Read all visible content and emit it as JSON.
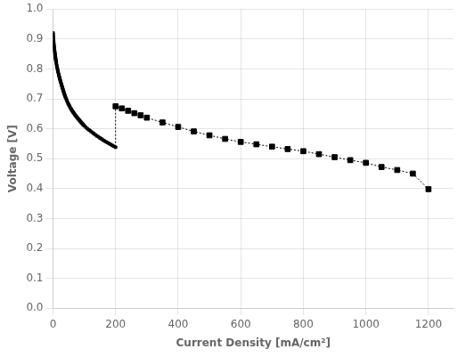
{
  "chart_data": {
    "type": "scatter",
    "xlabel": "Current Density [mA/cm²]",
    "ylabel": "Voltage [V]",
    "xlim": [
      0,
      1280
    ],
    "ylim": [
      0.0,
      1.0
    ],
    "xticks": [
      0,
      200,
      400,
      600,
      800,
      1000,
      1200
    ],
    "yticks": [
      {
        "value": 0.0,
        "label": "0.0"
      },
      0.1,
      0.2,
      0.3,
      0.4,
      0.5,
      0.6,
      0.7,
      0.8,
      0.9,
      {
        "value": 1.0,
        "label": "1.0"
      }
    ],
    "grid": true,
    "series": [
      {
        "type": "line",
        "line_style": "dotted",
        "color": "black",
        "x": [
          0.3,
          0.6,
          1.0,
          1.5,
          2.0,
          2.5,
          3.0,
          3.5,
          4.0,
          4.5,
          5.0,
          5.5,
          6.0,
          6.5,
          7.0,
          7.5,
          8.0,
          8.5,
          9.0,
          9.5,
          10.0,
          11.0,
          12.0,
          13.0,
          14.0,
          15.0,
          16.0,
          17.0,
          18.0,
          19.0,
          20.0,
          21.0,
          22.0,
          23.0,
          24.0,
          25.0,
          26.0,
          27.0,
          28.0,
          29.0,
          30.0,
          31.0,
          32.0,
          33.0,
          34.0,
          35.0,
          36.0,
          37.0,
          38.0,
          39.0,
          40.0,
          42.0,
          44.0,
          46.0,
          48.0,
          50.0,
          52.0,
          54.0,
          56.0,
          58.0,
          60.0,
          62.0,
          64.0,
          66.0,
          68.0,
          70.0,
          72.0,
          74.0,
          76.0,
          78.0,
          80.0,
          82.0,
          84.0,
          86.0,
          88.0,
          90.0,
          92.0,
          94.0,
          96.0,
          98.0,
          100.0,
          105.0,
          110.0,
          115.0,
          120.0,
          125.0,
          130.0,
          135.0,
          140.0,
          145.0,
          150.0,
          155.0,
          160.0,
          165.0,
          170.0,
          175.0,
          180.0,
          185.0,
          190.0,
          195.0,
          200.0,
          200.0,
          220.0,
          240.0,
          260.0,
          280.0,
          300.0,
          350.0,
          400.0,
          450.0,
          500.0,
          550.0,
          600.0,
          650.0,
          700.0,
          750.0,
          800.0,
          850.0,
          900.0,
          950.0,
          1000.0,
          1050.0,
          1100.0,
          1150.0,
          1200.0
        ],
        "values": [
          0.92,
          0.914,
          0.908,
          0.9,
          0.893,
          0.887,
          0.881,
          0.876,
          0.871,
          0.866,
          0.861,
          0.857,
          0.853,
          0.849,
          0.845,
          0.841,
          0.837,
          0.834,
          0.83,
          0.827,
          0.823,
          0.817,
          0.811,
          0.806,
          0.801,
          0.796,
          0.791,
          0.787,
          0.782,
          0.778,
          0.774,
          0.77,
          0.766,
          0.762,
          0.759,
          0.755,
          0.751,
          0.748,
          0.744,
          0.741,
          0.737,
          0.734,
          0.73,
          0.727,
          0.724,
          0.72,
          0.717,
          0.714,
          0.711,
          0.708,
          0.705,
          0.7,
          0.695,
          0.69,
          0.685,
          0.681,
          0.677,
          0.673,
          0.669,
          0.666,
          0.662,
          0.659,
          0.656,
          0.653,
          0.65,
          0.647,
          0.644,
          0.641,
          0.639,
          0.636,
          0.634,
          0.631,
          0.629,
          0.626,
          0.624,
          0.621,
          0.619,
          0.617,
          0.614,
          0.612,
          0.61,
          0.605,
          0.6,
          0.596,
          0.592,
          0.588,
          0.584,
          0.58,
          0.576,
          0.573,
          0.569,
          0.566,
          0.562,
          0.559,
          0.556,
          0.553,
          0.55,
          0.547,
          0.544,
          0.541,
          0.538,
          0.675,
          0.668,
          0.66,
          0.652,
          0.645,
          0.637,
          0.621,
          0.606,
          0.591,
          0.578,
          0.566,
          0.556,
          0.548,
          0.54,
          0.532,
          0.525,
          0.515,
          0.505,
          0.495,
          0.486,
          0.472,
          0.462,
          0.45,
          0.398
        ]
      },
      {
        "marker": "square",
        "color": "black",
        "x": [
          0.3,
          0.6,
          1.0,
          1.5,
          2.0,
          2.5,
          3.0,
          3.5,
          4.0,
          4.5,
          5.0,
          5.5,
          6.0,
          6.5,
          7.0,
          7.5,
          8.0,
          8.5,
          9.0,
          9.5,
          10.0,
          11.0,
          12.0,
          13.0,
          14.0,
          15.0,
          16.0,
          17.0,
          18.0,
          19.0,
          20.0,
          21.0,
          22.0,
          23.0,
          24.0,
          25.0,
          26.0,
          27.0,
          28.0,
          29.0,
          30.0,
          31.0,
          32.0,
          33.0,
          34.0,
          35.0,
          36.0,
          37.0,
          38.0,
          39.0,
          40.0,
          42.0,
          44.0,
          46.0,
          48.0,
          50.0,
          52.0,
          54.0,
          56.0,
          58.0,
          60.0,
          62.0,
          64.0,
          66.0,
          68.0,
          70.0,
          72.0,
          74.0,
          76.0,
          78.0,
          80.0,
          82.0,
          84.0,
          86.0,
          88.0,
          90.0,
          92.0,
          94.0,
          96.0,
          98.0,
          100.0,
          105.0,
          110.0,
          115.0,
          120.0,
          125.0,
          130.0,
          135.0,
          140.0,
          145.0,
          150.0,
          155.0,
          160.0,
          165.0,
          170.0,
          175.0,
          180.0,
          185.0,
          190.0,
          195.0,
          200.0
        ],
        "values": [
          0.92,
          0.914,
          0.908,
          0.9,
          0.893,
          0.887,
          0.881,
          0.876,
          0.871,
          0.866,
          0.861,
          0.857,
          0.853,
          0.849,
          0.845,
          0.841,
          0.837,
          0.834,
          0.83,
          0.827,
          0.823,
          0.817,
          0.811,
          0.806,
          0.801,
          0.796,
          0.791,
          0.787,
          0.782,
          0.778,
          0.774,
          0.77,
          0.766,
          0.762,
          0.759,
          0.755,
          0.751,
          0.748,
          0.744,
          0.741,
          0.737,
          0.734,
          0.73,
          0.727,
          0.724,
          0.72,
          0.717,
          0.714,
          0.711,
          0.708,
          0.705,
          0.7,
          0.695,
          0.69,
          0.685,
          0.681,
          0.677,
          0.673,
          0.669,
          0.666,
          0.662,
          0.659,
          0.656,
          0.653,
          0.65,
          0.647,
          0.644,
          0.641,
          0.639,
          0.636,
          0.634,
          0.631,
          0.629,
          0.626,
          0.624,
          0.621,
          0.619,
          0.617,
          0.614,
          0.612,
          0.61,
          0.605,
          0.6,
          0.596,
          0.592,
          0.588,
          0.584,
          0.58,
          0.576,
          0.573,
          0.569,
          0.566,
          0.562,
          0.559,
          0.556,
          0.553,
          0.55,
          0.547,
          0.544,
          0.541,
          0.538
        ]
      },
      {
        "marker": "square",
        "color": "black",
        "x": [
          200.0,
          220.0,
          240.0,
          260.0,
          280.0,
          300.0,
          350.0,
          400.0,
          450.0,
          500.0,
          550.0,
          600.0,
          650.0,
          700.0,
          750.0,
          800.0,
          850.0,
          900.0,
          950.0,
          1000.0,
          1050.0,
          1100.0,
          1150.0,
          1200.0
        ],
        "values": [
          0.675,
          0.668,
          0.66,
          0.652,
          0.645,
          0.637,
          0.621,
          0.606,
          0.591,
          0.578,
          0.566,
          0.556,
          0.548,
          0.54,
          0.532,
          0.525,
          0.515,
          0.505,
          0.495,
          0.486,
          0.472,
          0.462,
          0.45,
          0.398
        ]
      }
    ]
  }
}
